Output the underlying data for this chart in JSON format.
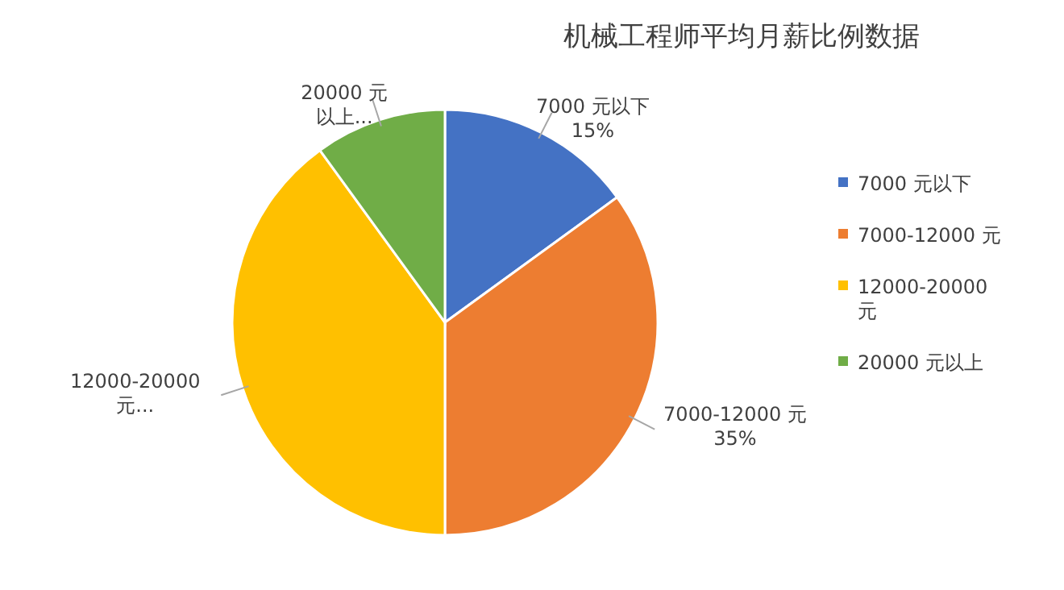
{
  "chart_data": {
    "type": "pie",
    "title": "机械工程师平均月薪比例数据",
    "categories": [
      "7000 元以下",
      "7000-12000 元",
      "12000-20000 元",
      "20000 元以上"
    ],
    "values": [
      15,
      35,
      40,
      10
    ],
    "colors": [
      "#4472c4",
      "#ed7d31",
      "#ffc000",
      "#70ad47"
    ],
    "value_labels": [
      "7000 元以下\n15%",
      "7000-12000 元\n35%",
      "12000-20000\n元...",
      "20000 元以上..."
    ],
    "legend": "right"
  }
}
